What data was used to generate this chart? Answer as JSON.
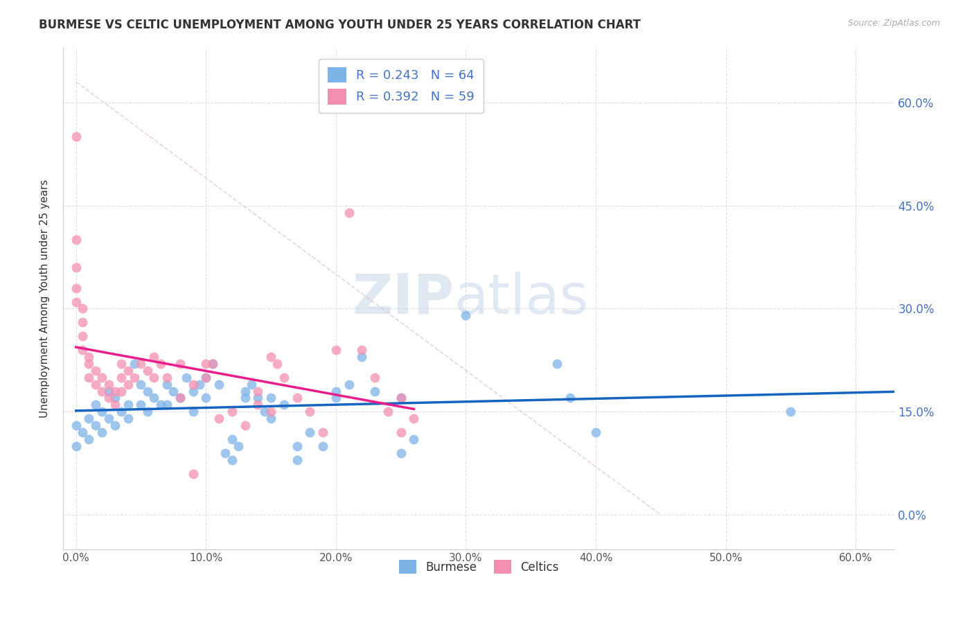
{
  "title": "BURMESE VS CELTIC UNEMPLOYMENT AMONG YOUTH UNDER 25 YEARS CORRELATION CHART",
  "source": "Source: ZipAtlas.com",
  "ylabel": "Unemployment Among Youth under 25 years",
  "xlabel_ticks": [
    "0.0%",
    "10.0%",
    "20.0%",
    "30.0%",
    "40.0%",
    "50.0%",
    "60.0%"
  ],
  "xlabel_vals": [
    0,
    10,
    20,
    30,
    40,
    50,
    60
  ],
  "ylabel_ticks": [
    "0.0%",
    "15.0%",
    "30.0%",
    "45.0%",
    "60.0%"
  ],
  "ylabel_vals": [
    0,
    15,
    30,
    45,
    60
  ],
  "xlim": [
    -1,
    63
  ],
  "ylim": [
    -5,
    68
  ],
  "burmese_R": 0.243,
  "burmese_N": 64,
  "celtics_R": 0.392,
  "celtics_N": 59,
  "burmese_color": "#7eb3e8",
  "celtics_color": "#f48fb1",
  "burmese_line_color": "#1565c0",
  "celtics_line_color": "#e91e8c",
  "burmese_scatter": [
    [
      0.0,
      10.0
    ],
    [
      0.0,
      13.0
    ],
    [
      0.5,
      12.0
    ],
    [
      1.0,
      14.0
    ],
    [
      1.0,
      11.0
    ],
    [
      1.5,
      16.0
    ],
    [
      1.5,
      13.0
    ],
    [
      2.0,
      15.0
    ],
    [
      2.0,
      12.0
    ],
    [
      2.5,
      18.0
    ],
    [
      2.5,
      14.0
    ],
    [
      3.0,
      17.0
    ],
    [
      3.0,
      13.0
    ],
    [
      3.5,
      15.0
    ],
    [
      4.0,
      16.0
    ],
    [
      4.0,
      14.0
    ],
    [
      4.5,
      22.0
    ],
    [
      5.0,
      19.0
    ],
    [
      5.0,
      16.0
    ],
    [
      5.5,
      18.0
    ],
    [
      5.5,
      15.0
    ],
    [
      6.0,
      17.0
    ],
    [
      6.5,
      16.0
    ],
    [
      7.0,
      19.0
    ],
    [
      7.0,
      16.0
    ],
    [
      7.5,
      18.0
    ],
    [
      8.0,
      17.0
    ],
    [
      8.5,
      20.0
    ],
    [
      9.0,
      18.0
    ],
    [
      9.0,
      15.0
    ],
    [
      9.5,
      19.0
    ],
    [
      10.0,
      20.0
    ],
    [
      10.0,
      17.0
    ],
    [
      10.5,
      22.0
    ],
    [
      11.0,
      19.0
    ],
    [
      11.5,
      9.0
    ],
    [
      12.0,
      11.0
    ],
    [
      12.0,
      8.0
    ],
    [
      12.5,
      10.0
    ],
    [
      13.0,
      18.0
    ],
    [
      13.0,
      17.0
    ],
    [
      13.5,
      19.0
    ],
    [
      14.0,
      17.0
    ],
    [
      14.5,
      15.0
    ],
    [
      15.0,
      17.0
    ],
    [
      15.0,
      14.0
    ],
    [
      16.0,
      16.0
    ],
    [
      17.0,
      8.0
    ],
    [
      17.0,
      10.0
    ],
    [
      18.0,
      12.0
    ],
    [
      19.0,
      10.0
    ],
    [
      20.0,
      18.0
    ],
    [
      20.0,
      17.0
    ],
    [
      21.0,
      19.0
    ],
    [
      22.0,
      23.0
    ],
    [
      23.0,
      18.0
    ],
    [
      25.0,
      17.0
    ],
    [
      25.0,
      9.0
    ],
    [
      26.0,
      11.0
    ],
    [
      30.0,
      29.0
    ],
    [
      37.0,
      22.0
    ],
    [
      38.0,
      17.0
    ],
    [
      40.0,
      12.0
    ],
    [
      55.0,
      15.0
    ]
  ],
  "celtics_scatter": [
    [
      0.0,
      55.0
    ],
    [
      0.0,
      40.0
    ],
    [
      0.0,
      36.0
    ],
    [
      0.0,
      33.0
    ],
    [
      0.0,
      31.0
    ],
    [
      0.5,
      30.0
    ],
    [
      0.5,
      28.0
    ],
    [
      0.5,
      26.0
    ],
    [
      0.5,
      24.0
    ],
    [
      1.0,
      23.0
    ],
    [
      1.0,
      22.0
    ],
    [
      1.0,
      20.0
    ],
    [
      1.5,
      21.0
    ],
    [
      1.5,
      19.0
    ],
    [
      2.0,
      20.0
    ],
    [
      2.0,
      18.0
    ],
    [
      2.5,
      19.0
    ],
    [
      2.5,
      17.0
    ],
    [
      3.0,
      18.0
    ],
    [
      3.0,
      16.0
    ],
    [
      3.5,
      22.0
    ],
    [
      3.5,
      20.0
    ],
    [
      3.5,
      18.0
    ],
    [
      4.0,
      21.0
    ],
    [
      4.0,
      19.0
    ],
    [
      4.5,
      20.0
    ],
    [
      5.0,
      22.0
    ],
    [
      5.5,
      21.0
    ],
    [
      6.0,
      23.0
    ],
    [
      6.0,
      20.0
    ],
    [
      6.5,
      22.0
    ],
    [
      7.0,
      20.0
    ],
    [
      8.0,
      22.0
    ],
    [
      8.0,
      17.0
    ],
    [
      9.0,
      19.0
    ],
    [
      9.0,
      6.0
    ],
    [
      10.0,
      22.0
    ],
    [
      10.0,
      20.0
    ],
    [
      10.5,
      22.0
    ],
    [
      11.0,
      14.0
    ],
    [
      12.0,
      15.0
    ],
    [
      13.0,
      13.0
    ],
    [
      14.0,
      18.0
    ],
    [
      14.0,
      16.0
    ],
    [
      15.0,
      15.0
    ],
    [
      15.0,
      23.0
    ],
    [
      15.5,
      22.0
    ],
    [
      16.0,
      20.0
    ],
    [
      17.0,
      17.0
    ],
    [
      18.0,
      15.0
    ],
    [
      19.0,
      12.0
    ],
    [
      20.0,
      24.0
    ],
    [
      21.0,
      44.0
    ],
    [
      22.0,
      24.0
    ],
    [
      23.0,
      20.0
    ],
    [
      24.0,
      15.0
    ],
    [
      25.0,
      12.0
    ],
    [
      25.0,
      17.0
    ],
    [
      26.0,
      14.0
    ]
  ],
  "watermark_zip": "ZIP",
  "watermark_atlas": "atlas",
  "background_color": "#ffffff",
  "grid_color": "#e0e0e0",
  "dashed_line_color": "#cccccc"
}
